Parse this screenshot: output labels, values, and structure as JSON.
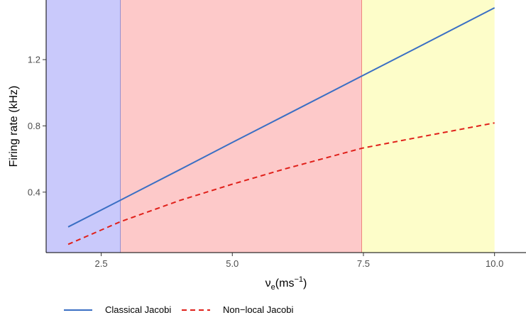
{
  "chart_data": {
    "type": "line",
    "title": "",
    "xlabel": {
      "base": "ν",
      "sub": "e",
      "unit_pre": "(ms",
      "sup": "−1",
      "unit_post": ")"
    },
    "ylabel": "Firing rate (kHz)",
    "xlim": [
      1.45,
      10.6
    ],
    "ylim": [
      0.035,
      1.56
    ],
    "xticks": [
      2.5,
      5.0,
      7.5,
      10.0
    ],
    "xtick_labels": [
      "2.5",
      "5.0",
      "7.5",
      "10.0"
    ],
    "yticks": [
      0.4,
      0.8,
      1.2
    ],
    "ytick_labels": [
      "0.4",
      "0.8",
      "1.2"
    ],
    "regions": [
      {
        "from": 1.45,
        "to": 2.87,
        "fill": "#c9c9fb",
        "edge": "#5a5ab0"
      },
      {
        "from": 2.87,
        "to": 7.47,
        "fill": "#fdc9c9",
        "edge": "#e03030"
      },
      {
        "from": 7.47,
        "to": 10.0,
        "fill": "#fdfdc9",
        "edge": null
      }
    ],
    "series": [
      {
        "name": "Classical Jacobi",
        "color": "#3a6fc4",
        "dash": "solid",
        "x": [
          1.87,
          2.87,
          4.0,
          5.0,
          6.0,
          7.47,
          8.5,
          10.0
        ],
        "y": [
          0.19,
          0.352,
          0.536,
          0.7,
          0.862,
          1.101,
          1.268,
          1.513
        ]
      },
      {
        "name": "Non−local Jacobi",
        "color": "#e0201a",
        "dash": "dashed",
        "x": [
          1.87,
          2.87,
          4.0,
          5.0,
          6.0,
          7.47,
          8.5,
          10.0
        ],
        "y": [
          0.085,
          0.222,
          0.35,
          0.448,
          0.54,
          0.665,
          0.728,
          0.818
        ]
      }
    ],
    "legend": "bottom",
    "grid": false
  }
}
